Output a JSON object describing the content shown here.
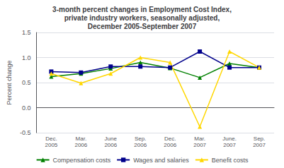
{
  "chart_data": {
    "type": "line",
    "title": "3-month percent changes in Employment Cost Index,\nprivate industry workers, seasonally adjusted,\nDecember 2005-September 2007",
    "categories": [
      "Dec.\n2005",
      "Mar.\n2006",
      "June\n2006",
      "Sep.\n2006",
      "Dec.\n2006",
      "Mar.\n2007",
      "June.\n2007",
      "Sep.\n2007"
    ],
    "ylabel": "Percent change",
    "ylim": [
      -0.5,
      1.5
    ],
    "yticks": [
      -0.5,
      {
        "value": 0,
        "label": "0.0"
      },
      0.5,
      {
        "value": 1,
        "label": "1.0"
      },
      1.5
    ],
    "grid": true,
    "legend": "bottom",
    "series": [
      {
        "name": "Compensation costs",
        "color": "#008000",
        "marker": "triangle",
        "values": [
          0.62,
          0.68,
          0.78,
          0.9,
          0.79,
          0.6,
          0.88,
          0.8
        ]
      },
      {
        "name": "Wages and salaries",
        "color": "#00008B",
        "marker": "square",
        "values": [
          0.72,
          0.7,
          0.82,
          0.82,
          0.8,
          1.12,
          0.8,
          0.8
        ]
      },
      {
        "name": "Benefit costs",
        "color": "#FFD700",
        "marker": "triangle",
        "values": [
          0.68,
          0.49,
          0.68,
          1.0,
          0.9,
          -0.38,
          1.12,
          0.8
        ]
      }
    ]
  }
}
